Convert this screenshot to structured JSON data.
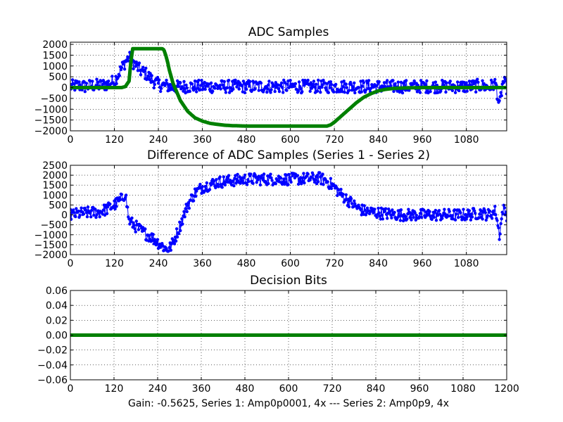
{
  "figure": {
    "caption": "Gain: -0.5625, Series 1: Amp0p0001, 4x --- Series 2: Amp0p9, 4x"
  },
  "colors": {
    "series_blue": "#0000ff",
    "series_green": "#008000"
  },
  "chart_data": [
    {
      "type": "line",
      "title": "ADC Samples",
      "xlabel": "",
      "ylabel": "",
      "xlim": [
        0,
        1190
      ],
      "ylim": [
        -2000,
        2100
      ],
      "xticks": [
        0,
        120,
        240,
        360,
        480,
        600,
        720,
        840,
        960,
        1080
      ],
      "yticks": [
        -2000,
        -1500,
        -1000,
        -500,
        0,
        500,
        1000,
        1500,
        2000
      ],
      "grid": true,
      "legend": "none",
      "series": [
        {
          "color": "#0000ff",
          "style": "line-with-dot-markers",
          "x": [
            0,
            20,
            40,
            60,
            80,
            100,
            120,
            130,
            140,
            150,
            160,
            170,
            180,
            190,
            200,
            210,
            220,
            230,
            240,
            250,
            260,
            270,
            280,
            300,
            360,
            480,
            600,
            720,
            840,
            960,
            1080,
            1120,
            1140,
            1160,
            1170,
            1180,
            1190
          ],
          "y": [
            50,
            100,
            50,
            100,
            100,
            150,
            300,
            600,
            900,
            1200,
            1400,
            1200,
            1000,
            800,
            700,
            600,
            400,
            250,
            150,
            100,
            100,
            50,
            0,
            50,
            50,
            50,
            50,
            50,
            50,
            50,
            50,
            100,
            0,
            200,
            -900,
            300,
            0
          ],
          "noise_band": 300
        },
        {
          "color": "#008000",
          "style": "thick-line",
          "x": [
            0,
            120,
            130,
            140,
            150,
            160,
            165,
            170,
            250,
            255,
            260,
            265,
            270,
            280,
            300,
            320,
            340,
            360,
            380,
            400,
            420,
            440,
            460,
            480,
            600,
            700,
            710,
            720,
            740,
            760,
            780,
            800,
            820,
            840,
            860,
            880,
            900,
            960,
            1080,
            1190
          ],
          "y": [
            0,
            0,
            0,
            0,
            50,
            300,
            1200,
            1800,
            1800,
            1750,
            1500,
            1200,
            800,
            200,
            -600,
            -1100,
            -1400,
            -1550,
            -1650,
            -1700,
            -1740,
            -1760,
            -1770,
            -1780,
            -1780,
            -1780,
            -1720,
            -1600,
            -1300,
            -1000,
            -700,
            -450,
            -280,
            -150,
            -80,
            -40,
            -20,
            0,
            0,
            0
          ]
        }
      ]
    },
    {
      "type": "line",
      "title": "Difference of ADC Samples (Series 1 - Series 2)",
      "xlabel": "",
      "ylabel": "",
      "xlim": [
        0,
        1190
      ],
      "ylim": [
        -2000,
        2500
      ],
      "xticks": [
        0,
        120,
        240,
        360,
        480,
        600,
        720,
        840,
        960,
        1080
      ],
      "yticks": [
        -2000,
        -1500,
        -1000,
        -500,
        0,
        500,
        1000,
        1500,
        2000,
        2500
      ],
      "grid": true,
      "legend": "none",
      "series": [
        {
          "color": "#0000ff",
          "style": "line-with-dot-markers",
          "x": [
            0,
            40,
            80,
            100,
            120,
            140,
            150,
            160,
            180,
            200,
            220,
            240,
            260,
            270,
            280,
            300,
            320,
            340,
            360,
            400,
            480,
            600,
            680,
            700,
            720,
            740,
            760,
            780,
            800,
            840,
            900,
            960,
            1080,
            1120,
            1140,
            1160,
            1170,
            1180,
            1190
          ],
          "y": [
            0,
            100,
            150,
            300,
            500,
            800,
            1100,
            -300,
            -600,
            -900,
            -1100,
            -1400,
            -1700,
            -1700,
            -1400,
            -500,
            500,
            1100,
            1400,
            1650,
            1800,
            1800,
            1850,
            1700,
            1400,
            1000,
            700,
            400,
            200,
            100,
            0,
            0,
            0,
            100,
            0,
            200,
            -1000,
            300,
            0
          ],
          "noise_band": 300
        }
      ]
    },
    {
      "type": "line",
      "title": "Decision Bits",
      "xlabel": "Gain: -0.5625, Series 1: Amp0p0001, 4x --- Series 2: Amp0p9, 4x",
      "ylabel": "",
      "xlim": [
        0,
        1200
      ],
      "ylim": [
        -0.06,
        0.06
      ],
      "xticks": [
        0,
        120,
        240,
        360,
        480,
        600,
        720,
        840,
        960,
        1080,
        1200
      ],
      "yticks": [
        -0.06,
        -0.04,
        -0.02,
        0.0,
        0.02,
        0.04,
        0.06
      ],
      "ytick_labels": [
        "−0.06",
        "−0.04",
        "−0.02",
        "0.00",
        "0.02",
        "0.04",
        "0.06"
      ],
      "grid": true,
      "legend": "none",
      "series": [
        {
          "color": "#008000",
          "style": "thick-line",
          "x": [
            0,
            1200
          ],
          "y": [
            0,
            0
          ]
        }
      ]
    }
  ]
}
